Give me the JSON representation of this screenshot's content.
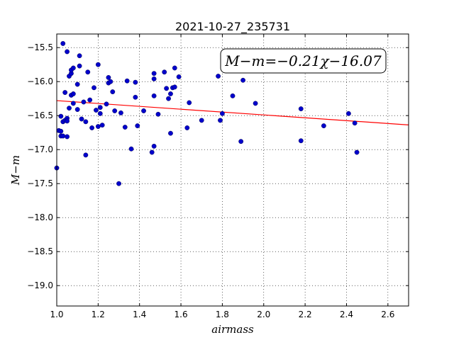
{
  "chart_data": {
    "type": "scatter",
    "title": "2021-10-27_235731",
    "xlabel": "airmass",
    "ylabel": "M−m",
    "xlim": [
      1.0,
      2.7
    ],
    "ylim": [
      -15.3,
      -19.3
    ],
    "y_inverted": true,
    "grid": true,
    "grid_style": "dotted",
    "xticks": [
      1.0,
      1.2,
      1.4,
      1.6,
      1.8,
      2.0,
      2.2,
      2.4,
      2.6
    ],
    "xtick_labels": [
      "1.0",
      "1.2",
      "1.4",
      "1.6",
      "1.8",
      "2.0",
      "2.2",
      "2.4",
      "2.6"
    ],
    "yticks": [
      -15.5,
      -16.0,
      -16.5,
      -17.0,
      -17.5,
      -18.0,
      -18.5,
      -19.0
    ],
    "ytick_labels": [
      "−15.5",
      "−16.0",
      "−16.5",
      "−17.0",
      "−17.5",
      "−18.0",
      "−18.5",
      "−19.0"
    ],
    "annotation": "M−m=−0.21χ−16.07",
    "fit": {
      "slope": -0.21,
      "intercept": -16.07,
      "color": "#ff0000"
    },
    "point_color": "#0000cc",
    "points": [
      [
        1.0,
        -17.27
      ],
      [
        1.01,
        -16.72
      ],
      [
        1.02,
        -16.51
      ],
      [
        1.02,
        -16.73
      ],
      [
        1.02,
        -16.8
      ],
      [
        1.03,
        -16.59
      ],
      [
        1.03,
        -16.8
      ],
      [
        1.03,
        -15.44
      ],
      [
        1.04,
        -16.57
      ],
      [
        1.05,
        -15.56
      ],
      [
        1.04,
        -16.16
      ],
      [
        1.05,
        -16.54
      ],
      [
        1.05,
        -16.81
      ],
      [
        1.05,
        -16.58
      ],
      [
        1.06,
        -15.92
      ],
      [
        1.06,
        -16.39
      ],
      [
        1.07,
        -15.88
      ],
      [
        1.07,
        -15.83
      ],
      [
        1.07,
        -16.2
      ],
      [
        1.08,
        -15.8
      ],
      [
        1.08,
        -16.32
      ],
      [
        1.08,
        -16.18
      ],
      [
        1.1,
        -16.41
      ],
      [
        1.1,
        -16.04
      ],
      [
        1.11,
        -15.62
      ],
      [
        1.11,
        -15.77
      ],
      [
        1.12,
        -16.55
      ],
      [
        1.13,
        -16.3
      ],
      [
        1.14,
        -16.59
      ],
      [
        1.14,
        -17.08
      ],
      [
        1.15,
        -15.86
      ],
      [
        1.16,
        -16.27
      ],
      [
        1.17,
        -16.68
      ],
      [
        1.18,
        -16.09
      ],
      [
        1.19,
        -16.42
      ],
      [
        1.2,
        -16.66
      ],
      [
        1.2,
        -15.75
      ],
      [
        1.21,
        -16.38
      ],
      [
        1.21,
        -16.47
      ],
      [
        1.22,
        -16.64
      ],
      [
        1.24,
        -16.33
      ],
      [
        1.25,
        -15.94
      ],
      [
        1.25,
        -16.02
      ],
      [
        1.26,
        -16.0
      ],
      [
        1.27,
        -16.15
      ],
      [
        1.28,
        -16.43
      ],
      [
        1.3,
        -17.5
      ],
      [
        1.31,
        -16.46
      ],
      [
        1.33,
        -16.67
      ],
      [
        1.34,
        -15.99
      ],
      [
        1.36,
        -16.99
      ],
      [
        1.38,
        -16.23
      ],
      [
        1.38,
        -16.01
      ],
      [
        1.39,
        -16.65
      ],
      [
        1.42,
        -16.43
      ],
      [
        1.46,
        -17.04
      ],
      [
        1.47,
        -16.95
      ],
      [
        1.47,
        -15.96
      ],
      [
        1.47,
        -15.88
      ],
      [
        1.47,
        -16.21
      ],
      [
        1.49,
        -16.48
      ],
      [
        1.52,
        -15.86
      ],
      [
        1.53,
        -16.1
      ],
      [
        1.54,
        -16.25
      ],
      [
        1.55,
        -16.18
      ],
      [
        1.55,
        -16.76
      ],
      [
        1.56,
        -16.09
      ],
      [
        1.57,
        -15.8
      ],
      [
        1.57,
        -16.08
      ],
      [
        1.59,
        -15.93
      ],
      [
        1.63,
        -16.68
      ],
      [
        1.64,
        -16.31
      ],
      [
        1.7,
        -16.57
      ],
      [
        1.78,
        -15.92
      ],
      [
        1.79,
        -16.57
      ],
      [
        1.8,
        -16.47
      ],
      [
        1.85,
        -16.21
      ],
      [
        1.89,
        -16.88
      ],
      [
        1.9,
        -15.98
      ],
      [
        1.96,
        -16.32
      ],
      [
        2.18,
        -16.4
      ],
      [
        2.18,
        -16.87
      ],
      [
        2.29,
        -16.65
      ],
      [
        2.41,
        -16.47
      ],
      [
        2.44,
        -16.61
      ],
      [
        2.45,
        -17.04
      ]
    ]
  }
}
